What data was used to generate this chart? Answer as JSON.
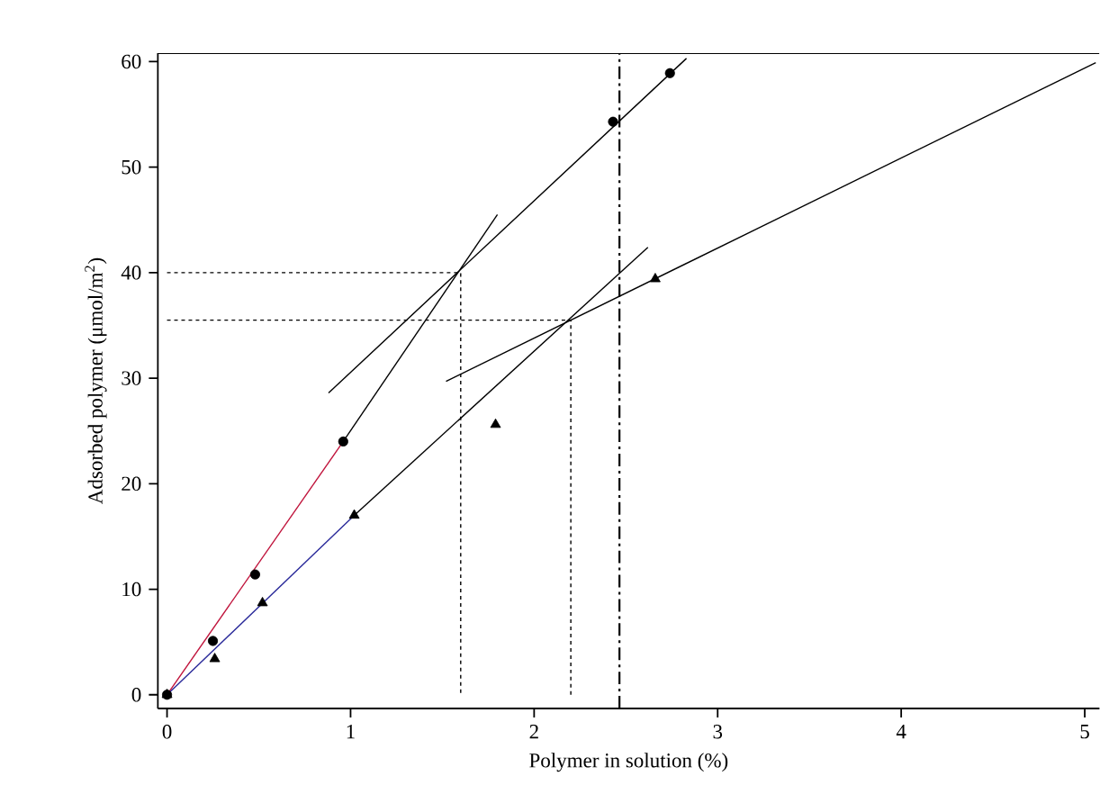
{
  "chart_data": {
    "type": "scatter",
    "xlabel": "Polymer in solution (%)",
    "ylabel": "Adsorbed polymer (μmol/m$^{2}$)",
    "xlim": [
      -0.05,
      5.08
    ],
    "ylim": [
      -1.3,
      60.8
    ],
    "xticks": [
      0,
      1,
      2,
      3,
      4,
      5
    ],
    "yticks": [
      0,
      10,
      20,
      30,
      40,
      50,
      60
    ],
    "series": [
      {
        "type": "scatter",
        "marker": "circle",
        "color": "#000000",
        "x": [
          0,
          0.25,
          0.48,
          0.96,
          2.43,
          2.74
        ],
        "values": [
          0,
          5.1,
          11.4,
          24.0,
          54.3,
          58.9
        ]
      },
      {
        "type": "scatter",
        "marker": "triangle",
        "color": "#000000",
        "x": [
          0,
          0.26,
          0.52,
          1.02,
          1.79,
          2.66
        ],
        "values": [
          0,
          3.4,
          8.7,
          17.0,
          25.6,
          39.4
        ]
      },
      {
        "type": "line",
        "color": "#c0143c",
        "x": [
          0,
          0.96
        ],
        "values": [
          0,
          24.0
        ]
      },
      {
        "type": "line",
        "color": "#2a2a9a",
        "x": [
          0,
          1.02
        ],
        "values": [
          0,
          17.0
        ]
      },
      {
        "type": "line",
        "color": "#000000",
        "x": [
          0.96,
          1.8
        ],
        "values": [
          24.0,
          45.5
        ]
      },
      {
        "type": "line",
        "color": "#000000",
        "x": [
          0.88,
          2.83
        ],
        "values": [
          28.6,
          60.3
        ]
      },
      {
        "type": "line",
        "color": "#000000",
        "x": [
          1.02,
          2.62
        ],
        "values": [
          17.0,
          42.4
        ]
      },
      {
        "type": "line",
        "color": "#000000",
        "x": [
          1.52,
          5.06
        ],
        "values": [
          29.7,
          59.9
        ]
      },
      {
        "type": "line",
        "line_style": "dotted",
        "color": "#000000",
        "x": [
          0,
          1.6,
          1.6
        ],
        "values": [
          40,
          40,
          0
        ]
      },
      {
        "type": "line",
        "line_style": "dotted",
        "color": "#000000",
        "x": [
          0,
          2.2,
          2.2
        ],
        "values": [
          35.5,
          35.5,
          0
        ]
      }
    ],
    "ref_lines": [
      {
        "axis": "x",
        "value": 2.465,
        "line_style": "dashed",
        "color": "#000000"
      }
    ]
  }
}
